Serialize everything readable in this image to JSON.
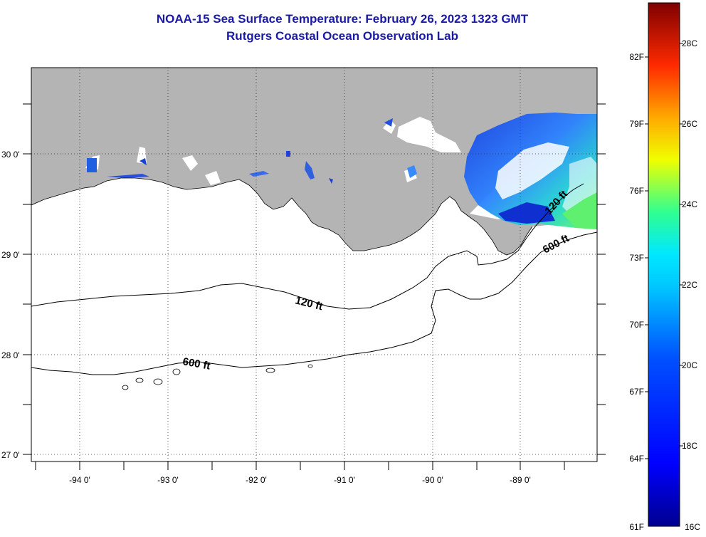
{
  "title": {
    "line1": "NOAA-15 Sea Surface Temperature:  February 26, 2023 1323 GMT",
    "line2": "Rutgers Coastal Ocean Observation Lab"
  },
  "map": {
    "x_ticks": [
      "-94 0'",
      "-93 0'",
      "-92 0'",
      "-91 0'",
      "-90 0'",
      "-89 0'"
    ],
    "y_ticks": [
      "30 0'",
      "29 0'",
      "28 0'",
      "27 0'"
    ],
    "land_color": "#b4b4b4",
    "ocean_color": "#ffffff",
    "contour_labels": {
      "c120_west": "120 ft",
      "c600_west": "600 ft",
      "c120_east": "120 ft",
      "c600_east": "600 ft"
    }
  },
  "colorbar": {
    "fahrenheit_labels": [
      "82F",
      "79F",
      "76F",
      "73F",
      "70F",
      "67F",
      "64F",
      "61F"
    ],
    "celsius_labels": [
      "28C",
      "26C",
      "24C",
      "22C",
      "20C",
      "18C",
      "16C"
    ],
    "colors": {
      "max": "#7f0000",
      "high": "#ff2a00",
      "warm": "#ffaa00",
      "mid": "#f0ff00",
      "cool": "#30ff90",
      "cyan": "#00e8ff",
      "blue": "#0050ff",
      "min": "#00008f"
    }
  }
}
